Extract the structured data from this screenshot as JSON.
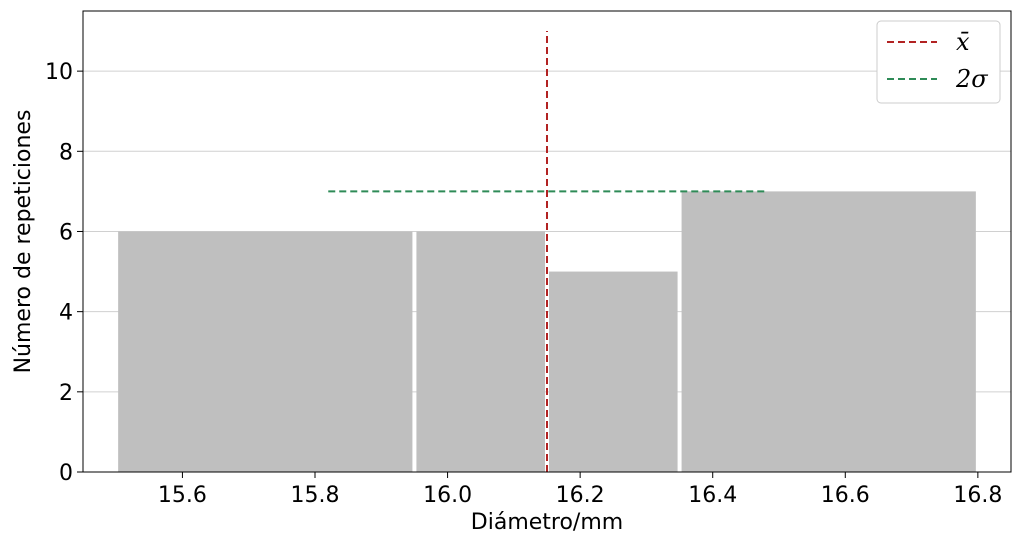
{
  "chart_data": {
    "type": "bar",
    "title": "",
    "xlabel": "Diámetro/mm",
    "ylabel": "Número de repeticiones",
    "xlim": [
      15.45,
      16.85
    ],
    "ylim": [
      0,
      11.5
    ],
    "xticks": [
      "15.6",
      "15.8",
      "16.0",
      "16.2",
      "16.4",
      "16.6",
      "16.8"
    ],
    "yticks": [
      "0",
      "2",
      "4",
      "6",
      "8",
      "10"
    ],
    "grid": "horizontal",
    "legend_position": "top-right",
    "bins": [
      {
        "x0": 15.5,
        "x1": 15.95,
        "count": 6
      },
      {
        "x0": 15.95,
        "x1": 16.15,
        "count": 6
      },
      {
        "x0": 16.15,
        "x1": 16.35,
        "count": 5
      },
      {
        "x0": 16.35,
        "x1": 16.8,
        "count": 7
      }
    ],
    "mean_line": {
      "x": 16.15,
      "y0": 0,
      "y1": 11
    },
    "sigma_line": {
      "x0": 15.82,
      "x1": 16.48,
      "y": 7
    },
    "legend": [
      {
        "label": "x̄",
        "color": "#b22222"
      },
      {
        "label": "2σ",
        "color": "#2e8b57"
      }
    ],
    "colors": {
      "bar": "#bfbfbf",
      "mean": "#b22222",
      "sigma": "#2e8b57",
      "grid": "#d0d0d0"
    }
  }
}
